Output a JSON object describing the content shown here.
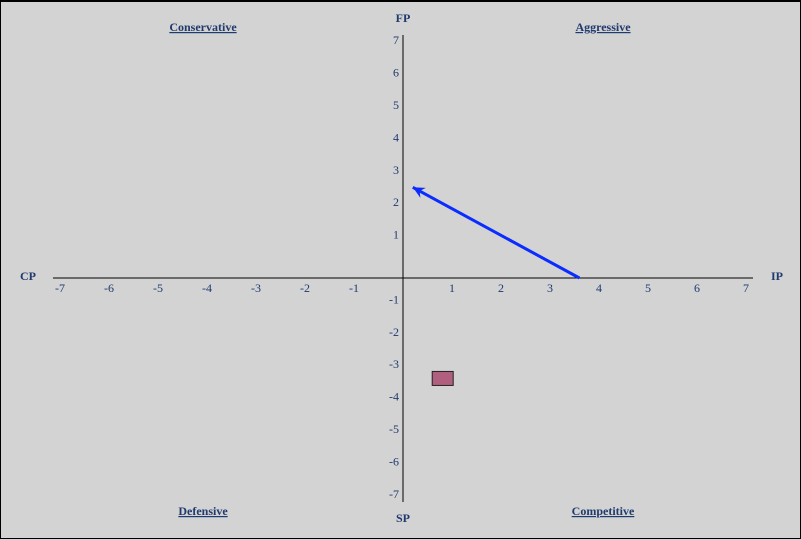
{
  "chart_data": {
    "type": "scatter",
    "axis_labels": {
      "top": "FP",
      "bottom": "SP",
      "left": "CP",
      "right": "IP"
    },
    "quadrant_labels": {
      "top_left": "Conservative",
      "top_right": "Aggressive",
      "bottom_left": "Defensive",
      "bottom_right": "Competitive"
    },
    "xlim": [
      -7,
      7
    ],
    "ylim": [
      -7,
      7
    ],
    "x_ticks": [
      -7,
      -6,
      -5,
      -4,
      -3,
      -2,
      -1,
      1,
      2,
      3,
      4,
      5,
      6,
      7
    ],
    "y_ticks": [
      7,
      6,
      5,
      4,
      3,
      2,
      1,
      -1,
      -2,
      -3,
      -4,
      -5,
      -6,
      -7
    ],
    "grid": false,
    "vector": {
      "from": [
        3.6,
        0
      ],
      "to": [
        0.2,
        2.8
      ],
      "color": "#0a2cff"
    },
    "marker": {
      "x": 0.8,
      "y": -3.1,
      "shape": "rectangle",
      "color": "#b0607e"
    }
  }
}
